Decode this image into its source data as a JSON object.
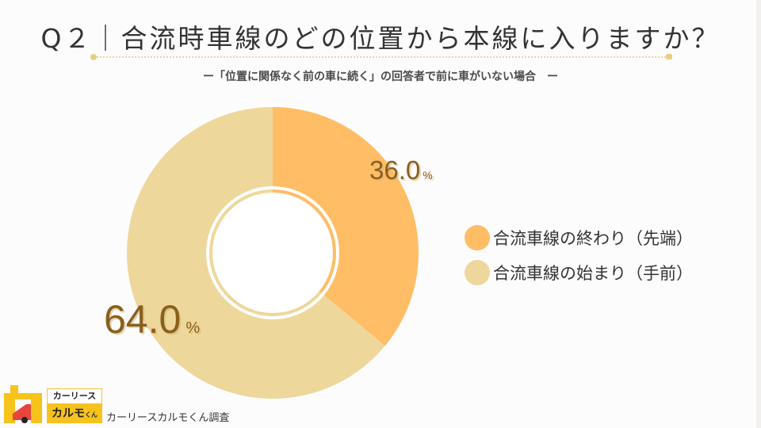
{
  "header": {
    "title": "Q２｜合流時車線のどの位置から本線に入りますか？",
    "subtitle": "ー「位置に関係なく前の車に続く」の回答者で前に車がいない場合　ー"
  },
  "chart_data": {
    "type": "pie",
    "variant": "donut",
    "title": "Q２｜合流時車線のどの位置から本線に入りますか？",
    "subtitle": "「位置に関係なく前の車に続く」の回答者で前に車がいない場合",
    "categories": [
      "合流車線の終わり（先端）",
      "合流車線の始まり（手前）"
    ],
    "values": [
      36.0,
      64.0
    ],
    "unit": "%",
    "colors": [
      "#ffbd66",
      "#eed79b"
    ],
    "legend_position": "right"
  },
  "labels": {
    "slice1_value": "36.0",
    "slice2_value": "64.0",
    "unit": "%"
  },
  "legend": {
    "items": [
      {
        "label": "合流車線の終わり（先端）",
        "color": "#ffbd66"
      },
      {
        "label": "合流車線の始まり（手前）",
        "color": "#eed79b"
      }
    ]
  },
  "footer": {
    "brand_top": "カーリース",
    "brand_main": "カルモ",
    "brand_small": "くん",
    "source": "カーリースカルモくん調査"
  }
}
